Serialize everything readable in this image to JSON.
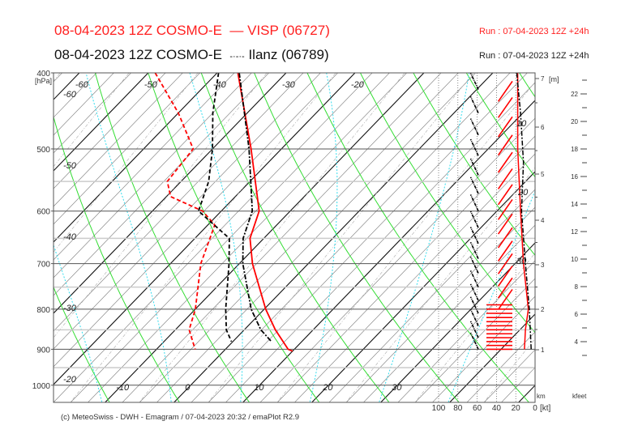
{
  "header": {
    "line1": {
      "date_model": "08-04-2023 12Z COSMO-E",
      "legend_symbol": "—",
      "station": "VISP (06727)",
      "run": "Run : 07-04-2023 12Z +24h",
      "color": "#ff2020"
    },
    "line2": {
      "date_model": "08-04-2023 12Z COSMO-E",
      "legend_symbol": "-·-·-",
      "station": "Ilanz (06789)",
      "run": "Run : 07-04-2023 12Z +24h",
      "color": "#111111"
    }
  },
  "footer": "(c) MeteoSwiss - DWH - Emagram / 07-04-2023  20:32 / emaPlot R2.9",
  "chart_data": {
    "type": "line",
    "chart_kind": "emagram",
    "y_axis": {
      "label": "[hPa]",
      "scale": "log",
      "range": [
        1050,
        400
      ],
      "ticks": [
        400,
        500,
        600,
        700,
        800,
        900,
        1000
      ],
      "minor_lines": [
        550,
        650,
        750,
        850,
        950
      ]
    },
    "temperature_ticks_1000hPa": [
      -10,
      0,
      10,
      20,
      30
    ],
    "temperature_labels_400hPa": [
      -60,
      -50,
      -40,
      -30,
      -20
    ],
    "temperature_labels_left": [
      -60,
      -50,
      -40,
      -30,
      -20
    ],
    "right_inner_labels": [
      "10",
      "20",
      "30"
    ],
    "wind_axis": {
      "label": "[kt]",
      "ticks": [
        100,
        80,
        60,
        40,
        20,
        0
      ]
    },
    "km_axis": {
      "label": "km",
      "unit_label": "[m]",
      "ticks": [
        1,
        2,
        3,
        4,
        5,
        6,
        7
      ]
    },
    "kfeet_axis": {
      "label": "kfeet",
      "labeled_ticks": [
        4,
        6,
        8,
        10,
        12,
        14,
        16,
        18,
        20,
        22
      ]
    },
    "colors": {
      "visp": "#ff0000",
      "ilanz": "#000000",
      "dry_adiabat": "#33dd33",
      "moist_adiabat": "#33ddee",
      "isotherm": "#000000"
    },
    "series": [
      {
        "name": "VISP (06727)",
        "kind": "temperature",
        "style": "solid",
        "color": "#ff0000",
        "points": [
          [
            400,
            -37
          ],
          [
            500,
            -24.4
          ],
          [
            600,
            -14.5
          ],
          [
            650,
            -12
          ],
          [
            700,
            -8.1
          ],
          [
            800,
            0.2
          ],
          [
            850,
            4.5
          ],
          [
            900,
            9.1
          ],
          [
            905,
            10
          ]
        ]
      },
      {
        "name": "VISP (06727)",
        "kind": "dewpoint",
        "style": "dashed",
        "color": "#ff0000",
        "points": [
          [
            400,
            -49
          ],
          [
            450,
            -40
          ],
          [
            500,
            -32.8
          ],
          [
            550,
            -32
          ],
          [
            575,
            -29.4
          ],
          [
            600,
            -22.7
          ],
          [
            625,
            -19
          ],
          [
            700,
            -15.6
          ],
          [
            800,
            -10
          ],
          [
            850,
            -8
          ],
          [
            900,
            -4.4
          ]
        ]
      },
      {
        "name": "Ilanz (06789)",
        "kind": "temperature",
        "style": "dashdot",
        "color": "#000000",
        "points": [
          [
            400,
            -36.8
          ],
          [
            500,
            -24.7
          ],
          [
            600,
            -15.5
          ],
          [
            650,
            -13
          ],
          [
            700,
            -9.5
          ],
          [
            800,
            -1.9
          ],
          [
            850,
            2.4
          ],
          [
            880,
            5.6
          ]
        ]
      },
      {
        "name": "Ilanz (06789)",
        "kind": "dewpoint",
        "style": "dashed",
        "color": "#000000",
        "points": [
          [
            400,
            -39.8
          ],
          [
            450,
            -35
          ],
          [
            500,
            -30
          ],
          [
            550,
            -26
          ],
          [
            600,
            -23.3
          ],
          [
            650,
            -15
          ],
          [
            700,
            -11.5
          ],
          [
            800,
            -5.6
          ],
          [
            850,
            -2.6
          ],
          [
            880,
            -0.2
          ]
        ]
      }
    ],
    "wind_speed": [
      {
        "name": "VISP (06727)",
        "style": "solid",
        "color": "#ff0000",
        "points": [
          [
            400,
            18
          ],
          [
            500,
            18
          ],
          [
            600,
            15
          ],
          [
            700,
            12
          ],
          [
            800,
            7
          ],
          [
            850,
            10
          ],
          [
            900,
            11
          ]
        ]
      },
      {
        "name": "Ilanz (06789)",
        "style": "dashdot",
        "color": "#000000",
        "points": [
          [
            400,
            19
          ],
          [
            450,
            15
          ],
          [
            520,
            12
          ],
          [
            600,
            14
          ],
          [
            700,
            10
          ],
          [
            800,
            6
          ],
          [
            900,
            4
          ]
        ]
      }
    ],
    "wind_vectors": [
      {
        "name": "VISP (06727)",
        "color": "#ff0000",
        "dir_deg": 35,
        "spd_kt": 38,
        "levels": [
          410,
          430,
          455,
          480,
          505,
          530,
          555,
          580,
          605,
          630,
          655,
          680,
          705,
          730,
          755
        ]
      },
      {
        "name": "VISP (06727)",
        "color": "#ff0000",
        "dir_deg": 90,
        "spd_kt": 40,
        "levels": [
          790,
          800,
          810,
          820,
          830,
          840,
          850,
          860,
          870,
          880,
          890,
          900
        ]
      },
      {
        "name": "Ilanz (06789)",
        "color": "#000000",
        "dir_deg": 155,
        "spd_kt": 28,
        "levels": [
          420,
          450,
          480,
          510,
          540,
          570,
          600,
          630,
          660,
          690,
          720,
          750,
          780,
          810,
          840,
          870,
          900
        ]
      }
    ]
  }
}
